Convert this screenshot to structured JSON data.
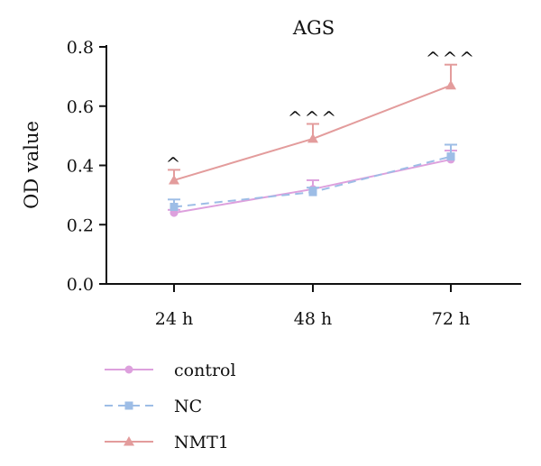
{
  "chart_data": {
    "type": "line",
    "title": "AGS",
    "ylabel": "OD value",
    "xlabel": "",
    "categories": [
      "24 h",
      "48 h",
      "72 h"
    ],
    "ylim": [
      0,
      0.8
    ],
    "yticks": [
      0.0,
      0.2,
      0.4,
      0.6,
      0.8
    ],
    "ytick_labels": [
      "0.0",
      "0.2",
      "0.4",
      "0.6",
      "0.8"
    ],
    "grid": false,
    "legend_position": "bottom-left",
    "series": [
      {
        "name": "control",
        "values": [
          0.24,
          0.32,
          0.42
        ],
        "errors": [
          0.01,
          0.03,
          0.03
        ],
        "color": "#dda0dd",
        "marker": "circle",
        "dash": "solid"
      },
      {
        "name": "NC",
        "values": [
          0.26,
          0.31,
          0.43
        ],
        "errors": [
          0.025,
          0.015,
          0.04
        ],
        "color": "#9dbde6",
        "marker": "square",
        "dash": "dashed"
      },
      {
        "name": "NMT1",
        "values": [
          0.35,
          0.49,
          0.67
        ],
        "errors": [
          0.035,
          0.05,
          0.07
        ],
        "color": "#e39c9c",
        "marker": "triangle",
        "dash": "solid"
      }
    ],
    "annotations": [
      {
        "category_index": 0,
        "text": "^"
      },
      {
        "category_index": 1,
        "text": "^^^"
      },
      {
        "category_index": 2,
        "text": "^^^"
      }
    ]
  }
}
